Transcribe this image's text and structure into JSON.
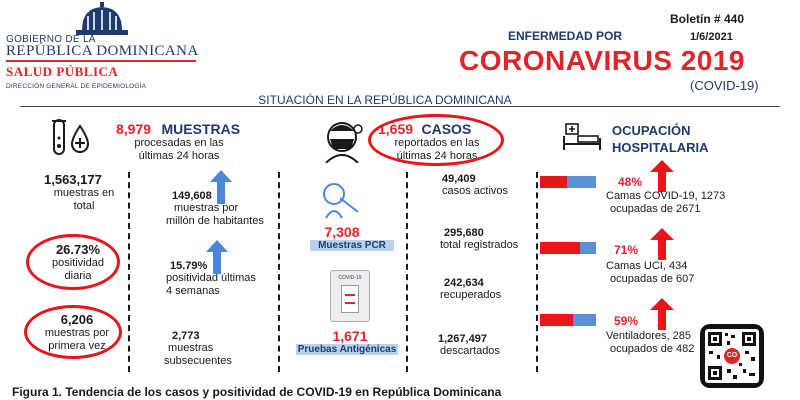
{
  "header": {
    "gov_line1": "GOBIERNO DE LA",
    "gov_line2": "REPÚBLICA DOMINICANA",
    "ministry": "SALUD PÚBLICA",
    "direction": "DIRECCIÓN GENERAL DE EPIDEMIOLOGÍA",
    "disease_label": "ENFERMEDAD POR",
    "title": "CORONAVIRUS 2019",
    "subtitle": "(COVID-19)",
    "bulletin": "Boletín # 440",
    "date": "1/6/2021",
    "situation": "SITUACIÓN EN LA REPÚBLICA DOMINICANA"
  },
  "samples": {
    "count_24h": "8,979",
    "label": "MUESTRAS",
    "sub_line1": "procesadas en las",
    "sub_line2": "últimas 24 horas",
    "total_value": "1,563,177",
    "total_line1": "muestras en",
    "total_line2": "total",
    "per_million_value": "149,608",
    "per_million_line1": "muestras por",
    "per_million_line2": "millón de habitantes",
    "daily_pos_value": "26.73%",
    "daily_pos_line1": "positividad",
    "daily_pos_line2": "diaria",
    "pos4w_value": "15.79%",
    "pos4w_line1": "positividad últimas",
    "pos4w_line2": "4 semanas",
    "first_time_value": "6,206",
    "first_time_line1": "muestras por",
    "first_time_line2": "primera vez",
    "subsequent_value": "2,773",
    "subsequent_line1": "muestras",
    "subsequent_line2": "subsecuentes"
  },
  "tests": {
    "pcr_value": "7,308",
    "pcr_label": "Muestras PCR",
    "antigen_value": "1,671",
    "antigen_label": "Pruebas Antigénicas",
    "kit_text": "COVID-19"
  },
  "cases": {
    "count_24h": "1,659",
    "label": "CASOS",
    "sub_line1": "reportados en las",
    "sub_line2": "últimas 24 horas",
    "active_value": "49,409",
    "active_label": "casos activos",
    "total_value": "295,680",
    "total_label": "total registrados",
    "recovered_value": "242,634",
    "recovered_label": "recuperados",
    "discarded_value": "1,267,497",
    "discarded_label": "descartados"
  },
  "occupancy": {
    "title_line1": "OCUPACIÓN",
    "title_line2": "HOSPITALARIA",
    "covid_beds_pct": "48%",
    "covid_beds_line1": "Camas COVID-19,  1273",
    "covid_beds_line2": "ocupadas de 2671",
    "icu_pct": "71%",
    "icu_line1": "Camas UCI,  434",
    "icu_line2": "ocupadas de 607",
    "vent_pct": "59%",
    "vent_line1": "Ventiladores, 285",
    "vent_line2": "ocupados de 482",
    "covid_beds_fill": 0.48,
    "icu_fill": 0.71,
    "vent_fill": 0.59
  },
  "qr_badge": "CO",
  "figure_caption": "Figura 1. Tendencia de los casos y positividad de COVID-19 en República Dominicana",
  "colors": {
    "red": "#e0242a",
    "navy": "#1f3a6e",
    "bar_red": "#e8151b",
    "bar_blue": "#5b8fd6",
    "arrow_blue": "#4a86d8"
  }
}
